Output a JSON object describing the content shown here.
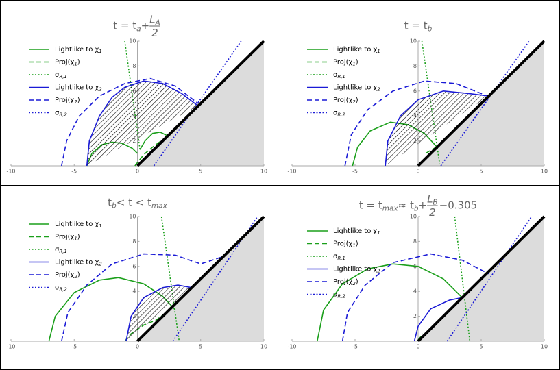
{
  "chart_data": [
    {
      "type": "line",
      "title": [
        {
          "text": "t = t",
          "pos": "base"
        },
        {
          "text": "a",
          "pos": "sub"
        },
        {
          "text": "+",
          "pos": "base"
        },
        {
          "text": "L",
          "pos": "num"
        },
        {
          "text": "A",
          "pos": "numsub"
        },
        {
          "text": "2",
          "pos": "den"
        }
      ],
      "xlim": [
        -10,
        10
      ],
      "ylim": [
        0,
        10
      ],
      "xticks": [
        -10,
        -5,
        0,
        5,
        10
      ],
      "yticks": [
        2,
        4,
        6,
        8,
        10
      ],
      "series": [
        {
          "name": [
            {
              "text": "Lightlike to χ",
              "pos": "base"
            },
            {
              "text": "1",
              "pos": "sub"
            }
          ],
          "color": "#1a9f1a",
          "dash": "solid",
          "x": [
            -4,
            -3.6,
            -2.8,
            -2,
            -1.2,
            -0.4,
            0,
            null,
            0.2,
            0.6,
            1.2,
            1.8,
            2.4
          ],
          "values": [
            0,
            1,
            1.7,
            1.9,
            1.8,
            1.4,
            1.0,
            null,
            1.3,
            2.0,
            2.6,
            2.7,
            2.4
          ]
        },
        {
          "name": [
            {
              "text": "Proj(χ",
              "pos": "base"
            },
            {
              "text": "1",
              "pos": "sub"
            },
            {
              "text": ")",
              "pos": "base"
            }
          ],
          "color": "#1a9f1a",
          "dash": "dashed",
          "x": [
            -0.2,
            0.5,
            1.2,
            2.4
          ],
          "values": [
            0,
            0.9,
            1.5,
            2.4
          ]
        },
        {
          "name": [
            {
              "text": "σ",
              "pos": "base"
            },
            {
              "text": "R,1",
              "pos": "sub"
            }
          ],
          "color": "#1a9f1a",
          "dash": "dotted",
          "x": [
            -1,
            0.2
          ],
          "values": [
            10,
            1.3
          ]
        },
        {
          "name": [
            {
              "text": "Lightlike to χ",
              "pos": "base"
            },
            {
              "text": "2",
              "pos": "sub"
            }
          ],
          "color": "#1a1ad6",
          "dash": "solid",
          "hatch": true,
          "x": [
            -4,
            -3.8,
            -3,
            -2,
            -1,
            0.5,
            2,
            3.5,
            4.8
          ],
          "values": [
            0,
            2,
            4,
            5.5,
            6.3,
            6.8,
            6.6,
            5.8,
            4.8
          ]
        },
        {
          "name": [
            {
              "text": "Proj(χ",
              "pos": "base"
            },
            {
              "text": "2",
              "pos": "sub"
            },
            {
              "text": ")",
              "pos": "base"
            }
          ],
          "color": "#1a1ad6",
          "dash": "dashed",
          "x": [
            -6,
            -5.6,
            -4.6,
            -3,
            -1,
            1,
            3,
            4.8
          ],
          "values": [
            0,
            2,
            4,
            5.6,
            6.6,
            7,
            6.4,
            5
          ]
        },
        {
          "name": [
            {
              "text": "σ",
              "pos": "base"
            },
            {
              "text": "R,2",
              "pos": "sub"
            }
          ],
          "color": "#1a1ad6",
          "dash": "dotted",
          "x": [
            1.3,
            8.2
          ],
          "values": [
            0,
            10
          ]
        }
      ]
    },
    {
      "type": "line",
      "title": [
        {
          "text": "t = t",
          "pos": "base"
        },
        {
          "text": "b",
          "pos": "sub"
        }
      ],
      "xlim": [
        -10,
        10
      ],
      "ylim": [
        0,
        10
      ],
      "xticks": [
        -10,
        -5,
        0,
        5,
        10
      ],
      "yticks": [
        2,
        4,
        6,
        8,
        10
      ],
      "series": [
        {
          "name": [
            {
              "text": "Lightlike to χ",
              "pos": "base"
            },
            {
              "text": "1",
              "pos": "sub"
            }
          ],
          "color": "#1a9f1a",
          "dash": "solid",
          "x": [
            -5.2,
            -4.8,
            -3.8,
            -2.2,
            -0.8,
            0.5,
            1.5
          ],
          "values": [
            0,
            1.5,
            2.8,
            3.5,
            3.3,
            2.6,
            1.5
          ]
        },
        {
          "name": [
            {
              "text": "Proj(χ",
              "pos": "base"
            },
            {
              "text": "1",
              "pos": "sub"
            },
            {
              "text": ")",
              "pos": "base"
            }
          ],
          "color": "#1a9f1a",
          "dash": "dashed",
          "x": [
            0.6,
            1.6
          ],
          "values": [
            1,
            1.6
          ]
        },
        {
          "name": [
            {
              "text": "σ",
              "pos": "base"
            },
            {
              "text": "R,1",
              "pos": "sub"
            }
          ],
          "color": "#1a9f1a",
          "dash": "dotted",
          "x": [
            0.3,
            1.7
          ],
          "values": [
            10,
            0.2
          ]
        },
        {
          "name": [
            {
              "text": "Lightlike to χ",
              "pos": "base"
            },
            {
              "text": "2",
              "pos": "sub"
            }
          ],
          "color": "#1a1ad6",
          "dash": "solid",
          "hatch": true,
          "x": [
            -2.6,
            -2.4,
            -1.4,
            0,
            2,
            4,
            5.6
          ],
          "values": [
            0,
            2,
            4,
            5.3,
            6,
            5.8,
            5.6
          ]
        },
        {
          "name": [
            {
              "text": "Proj(χ",
              "pos": "base"
            },
            {
              "text": "2",
              "pos": "sub"
            },
            {
              "text": ")",
              "pos": "base"
            }
          ],
          "color": "#1a1ad6",
          "dash": "dashed",
          "x": [
            -5.8,
            -5.3,
            -4,
            -2,
            0.5,
            3,
            5.5
          ],
          "values": [
            0,
            2.5,
            4.5,
            6,
            6.8,
            6.6,
            5.6
          ]
        },
        {
          "name": [
            {
              "text": "σ",
              "pos": "base"
            },
            {
              "text": "R,2",
              "pos": "sub"
            }
          ],
          "color": "#1a1ad6",
          "dash": "dotted",
          "x": [
            1.8,
            8.8
          ],
          "values": [
            0,
            10
          ]
        }
      ]
    },
    {
      "type": "line",
      "title": [
        {
          "text": "t",
          "pos": "base"
        },
        {
          "text": "b",
          "pos": "sub"
        },
        {
          "text": " < t < t",
          "pos": "base"
        },
        {
          "text": "max",
          "pos": "sub"
        }
      ],
      "xlim": [
        -10,
        10
      ],
      "ylim": [
        0,
        10
      ],
      "xticks": [
        -10,
        -5,
        0,
        5,
        10
      ],
      "yticks": [
        2,
        4,
        6,
        8,
        10
      ],
      "series": [
        {
          "name": [
            {
              "text": "Lightlike to χ",
              "pos": "base"
            },
            {
              "text": "1",
              "pos": "sub"
            }
          ],
          "color": "#1a9f1a",
          "dash": "solid",
          "x": [
            -7,
            -6.5,
            -5,
            -3,
            -1.5,
            0.5,
            2,
            3
          ],
          "values": [
            0,
            2,
            3.9,
            4.9,
            5.1,
            4.6,
            3.6,
            2.5
          ]
        },
        {
          "name": [
            {
              "text": "Proj(χ",
              "pos": "base"
            },
            {
              "text": "1",
              "pos": "sub"
            },
            {
              "text": ")",
              "pos": "base"
            }
          ],
          "color": "#1a9f1a",
          "dash": "dashed",
          "x": [
            -1,
            -0.5,
            0.5,
            1.5,
            2.5
          ],
          "values": [
            0,
            0.6,
            1.3,
            1.7,
            2.5
          ]
        },
        {
          "name": [
            {
              "text": "σ",
              "pos": "base"
            },
            {
              "text": "R,1",
              "pos": "sub"
            }
          ],
          "color": "#1a9f1a",
          "dash": "dotted",
          "x": [
            1.9,
            3.3
          ],
          "values": [
            10,
            0
          ]
        },
        {
          "name": [
            {
              "text": "Lightlike to χ",
              "pos": "base"
            },
            {
              "text": "2",
              "pos": "sub"
            }
          ],
          "color": "#1a1ad6",
          "dash": "solid",
          "hatch": true,
          "x": [
            -0.9,
            -0.5,
            0.5,
            2,
            3.2,
            4.3
          ],
          "values": [
            0,
            2,
            3.5,
            4.3,
            4.5,
            4.3
          ]
        },
        {
          "name": [
            {
              "text": "Proj(χ",
              "pos": "base"
            },
            {
              "text": "2",
              "pos": "sub"
            },
            {
              "text": ")",
              "pos": "base"
            }
          ],
          "color": "#1a1ad6",
          "dash": "dashed",
          "x": [
            -6,
            -5.5,
            -4,
            -2,
            0.5,
            3,
            5,
            6.8
          ],
          "values": [
            0,
            2.3,
            4.5,
            6.2,
            7,
            6.9,
            6.2,
            6.8
          ]
        },
        {
          "name": [
            {
              "text": "σ",
              "pos": "base"
            },
            {
              "text": "R,2",
              "pos": "sub"
            }
          ],
          "color": "#1a1ad6",
          "dash": "dotted",
          "x": [
            2.8,
            9.5
          ],
          "values": [
            0,
            10
          ]
        }
      ]
    },
    {
      "type": "line",
      "title": [
        {
          "text": "t = t",
          "pos": "base"
        },
        {
          "text": "max",
          "pos": "sub"
        },
        {
          "text": " ≈ t",
          "pos": "base"
        },
        {
          "text": "b",
          "pos": "sub"
        },
        {
          "text": "+",
          "pos": "base"
        },
        {
          "text": "L",
          "pos": "num"
        },
        {
          "text": "B",
          "pos": "numsub"
        },
        {
          "text": "2",
          "pos": "den"
        },
        {
          "text": "−0.305",
          "pos": "base"
        }
      ],
      "xlim": [
        -10,
        10
      ],
      "ylim": [
        0,
        10
      ],
      "xticks": [
        -10,
        -5,
        0,
        5,
        10
      ],
      "yticks": [
        2,
        4,
        6,
        8,
        10
      ],
      "series": [
        {
          "name": [
            {
              "text": "Lightlike to χ",
              "pos": "base"
            },
            {
              "text": "1",
              "pos": "sub"
            }
          ],
          "color": "#1a9f1a",
          "dash": "solid",
          "x": [
            -8,
            -7.5,
            -6,
            -4,
            -2,
            0,
            2,
            3.5
          ],
          "values": [
            0,
            2.5,
            4.6,
            5.8,
            6.2,
            6,
            5,
            3.5
          ]
        },
        {
          "name": [
            {
              "text": "Proj(χ",
              "pos": "base"
            },
            {
              "text": "1",
              "pos": "sub"
            },
            {
              "text": ")",
              "pos": "base"
            }
          ],
          "color": "#1a9f1a",
          "dash": "dashed",
          "x": [
            0,
            0.4
          ],
          "values": [
            0.1,
            0.6
          ]
        },
        {
          "name": [
            {
              "text": "σ",
              "pos": "base"
            },
            {
              "text": "R,1",
              "pos": "sub"
            }
          ],
          "color": "#1a9f1a",
          "dash": "dotted",
          "x": [
            2.9,
            4.1
          ],
          "values": [
            10,
            0
          ]
        },
        {
          "name": [
            {
              "text": "Lightlike to χ",
              "pos": "base"
            },
            {
              "text": "2",
              "pos": "sub"
            }
          ],
          "color": "#1a1ad6",
          "dash": "solid",
          "x": [
            -0.3,
            0,
            1,
            2.5,
            3.5
          ],
          "values": [
            0,
            1.2,
            2.6,
            3.3,
            3.5
          ]
        },
        {
          "name": [
            {
              "text": "Proj(χ",
              "pos": "base"
            },
            {
              "text": "2",
              "pos": "sub"
            },
            {
              "text": ")",
              "pos": "base"
            }
          ],
          "color": "#1a1ad6",
          "dash": "dashed",
          "x": [
            -6,
            -5.6,
            -4.2,
            -2,
            1,
            3.5,
            5.6
          ],
          "values": [
            0,
            2.3,
            4.5,
            6.3,
            7,
            6.5,
            5.4
          ]
        },
        {
          "name": [
            {
              "text": "σ",
              "pos": "base"
            },
            {
              "text": "R,2",
              "pos": "sub"
            }
          ],
          "color": "#1a1ad6",
          "dash": "dotted",
          "x": [
            2.3,
            9
          ],
          "values": [
            0,
            10
          ]
        }
      ]
    }
  ]
}
